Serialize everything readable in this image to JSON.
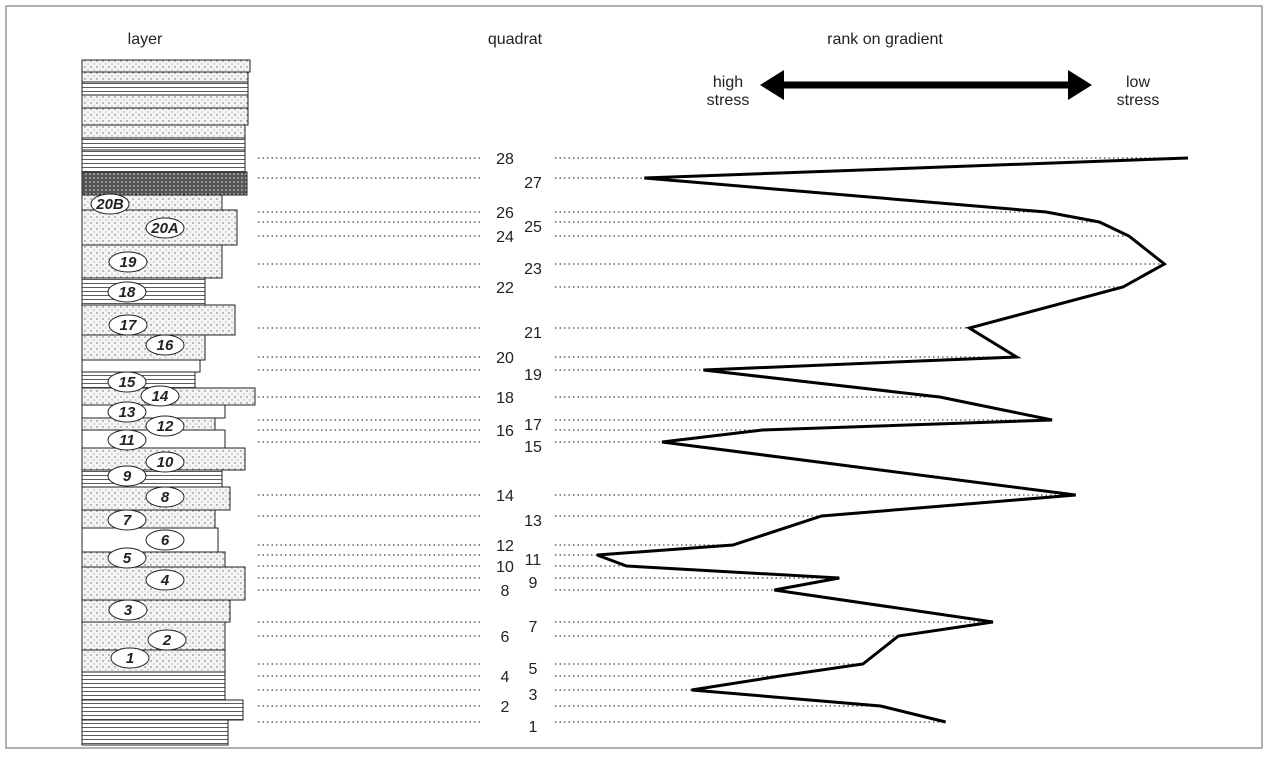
{
  "header": {
    "layer": "layer",
    "quadrat": "quadrat",
    "rank": "rank on gradient",
    "high_stress": [
      "high",
      "stress"
    ],
    "low_stress": [
      "low",
      "stress"
    ]
  },
  "layers": [
    "20B",
    "20A",
    "19",
    "18",
    "17",
    "16",
    "15",
    "14",
    "13",
    "12",
    "11",
    "10",
    "9",
    "8",
    "7",
    "6",
    "5",
    "4",
    "3",
    "2",
    "1"
  ],
  "quadrats": [
    {
      "quadrat": 1,
      "gradient": 59
    },
    {
      "quadrat": 2,
      "gradient": 48
    },
    {
      "quadrat": 3,
      "gradient": 16
    },
    {
      "quadrat": 4,
      "gradient": 31
    },
    {
      "quadrat": 5,
      "gradient": 45
    },
    {
      "quadrat": 6,
      "gradient": 51
    },
    {
      "quadrat": 7,
      "gradient": 67
    },
    {
      "quadrat": 8,
      "gradient": 30
    },
    {
      "quadrat": 9,
      "gradient": 41
    },
    {
      "quadrat": 10,
      "gradient": 5
    },
    {
      "quadrat": 11,
      "gradient": 0
    },
    {
      "quadrat": 12,
      "gradient": 23
    },
    {
      "quadrat": 13,
      "gradient": 38
    },
    {
      "quadrat": 14,
      "gradient": 81
    },
    {
      "quadrat": 15,
      "gradient": 11
    },
    {
      "quadrat": 16,
      "gradient": 28
    },
    {
      "quadrat": 17,
      "gradient": 77
    },
    {
      "quadrat": 18,
      "gradient": 58
    },
    {
      "quadrat": 19,
      "gradient": 18
    },
    {
      "quadrat": 20,
      "gradient": 71
    },
    {
      "quadrat": 21,
      "gradient": 63
    },
    {
      "quadrat": 22,
      "gradient": 89
    },
    {
      "quadrat": 23,
      "gradient": 96
    },
    {
      "quadrat": 24,
      "gradient": 90
    },
    {
      "quadrat": 25,
      "gradient": 85
    },
    {
      "quadrat": 26,
      "gradient": 76
    },
    {
      "quadrat": 27,
      "gradient": 8
    },
    {
      "quadrat": 28,
      "gradient": 100
    }
  ]
}
